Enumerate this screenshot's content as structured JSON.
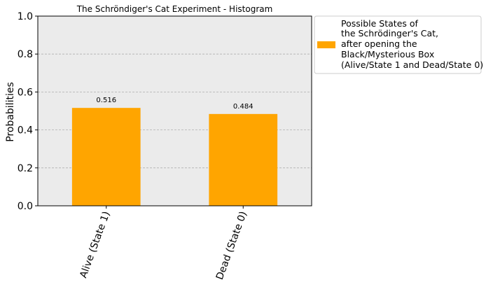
{
  "chart_data": {
    "type": "bar",
    "title": "The Schröndiger's Cat Experiment - Histogram",
    "xlabel": "",
    "ylabel": "Probabilities",
    "categories": [
      "Alive (State 1)",
      "Dead (State 0)"
    ],
    "values": [
      0.516,
      0.484
    ],
    "value_labels": [
      "0.516",
      "0.484"
    ],
    "ylim": [
      0,
      1.0
    ],
    "yticks": [
      "0.0",
      "0.2",
      "0.4",
      "0.6",
      "0.8",
      "1.0"
    ],
    "grid": "horizontal dashed",
    "legend": {
      "placement": "outside-right-top",
      "label_lines": [
        "Possible States of",
        "the Schrödinger's Cat,",
        "after opening the",
        "Black/Mysterious Box",
        "(Alive/State 1 and Dead/State 0)"
      ]
    },
    "colors": {
      "bar": "#FFA500",
      "plot_background": "#EBEBEB",
      "grid": "#B0B0B0"
    }
  }
}
